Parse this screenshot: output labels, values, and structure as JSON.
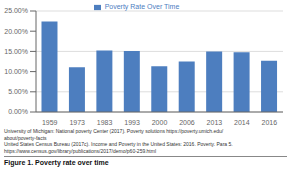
{
  "chart_data": {
    "type": "bar",
    "categories": [
      "1959",
      "1973",
      "1983",
      "1993",
      "2000",
      "2006",
      "2013",
      "2014",
      "2016"
    ],
    "series": [
      {
        "name": "Poverty Rate Over Time",
        "color": "#4d7ebf",
        "values": [
          22.4,
          11.1,
          15.2,
          15.1,
          11.3,
          12.5,
          15.0,
          14.8,
          12.7
        ]
      }
    ],
    "ylim": [
      0,
      25
    ],
    "yticks": [
      {
        "value": 0,
        "label": "0.00%"
      },
      {
        "value": 5,
        "label": "5.00%"
      },
      {
        "value": 10,
        "label": "10.00%"
      },
      {
        "value": 15,
        "label": "15.00%"
      },
      {
        "value": 20,
        "label": "20.00%"
      },
      {
        "value": 25,
        "label": "25.00%"
      }
    ],
    "grid": true,
    "legend": "top",
    "annotations": [
      "University of Michigan: National poverty Center (2017). Poverty solutions https://poverty.umich.edu/",
      "about/poverty-facts",
      "United States Census Bureau (2017c). Income and Poverty in the United States: 2016. Poverty. Para 5.",
      "https://www.census.gov/library/publications/2017/demo/p60-259.html"
    ],
    "caption": "Figure 1. Poverty rate over time"
  }
}
